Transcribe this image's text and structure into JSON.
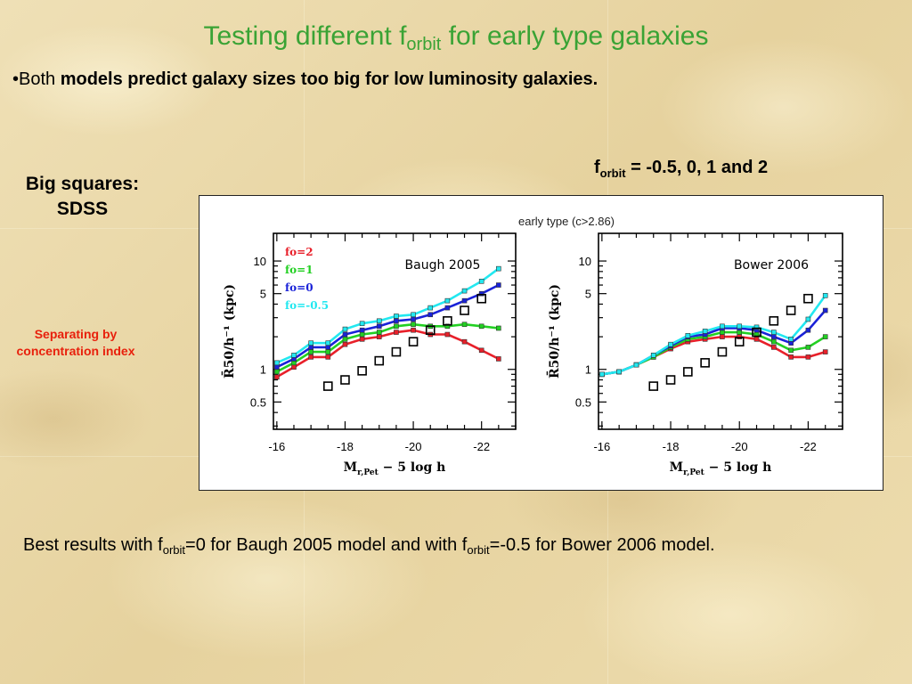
{
  "slide": {
    "title_main": "Testing different f",
    "title_sub": "orbit",
    "title_rest": " for early type galaxies",
    "bullet_marker": "•",
    "bullet_plain": "Both ",
    "bullet_bold": "models predict galaxy sizes too big for low luminosity galaxies.",
    "forbit_label": "f",
    "forbit_sub": "orbit",
    "forbit_values": " = -0.5, 0, 1 and 2",
    "big_squares_line1": "Big squares:",
    "big_squares_line2": "SDSS",
    "separating_line1": "Separating by",
    "separating_line2": "concentration index",
    "bottom_part1": "Best results with f",
    "bottom_sub1": "orbit",
    "bottom_part2": "=0 for Baugh 2005 model and with f",
    "bottom_sub2": "orbit",
    "bottom_part3": "=-0.5 for Bower 2006 model."
  },
  "colors": {
    "title_green": "#3aa335",
    "separating_red": "#e8200c",
    "fo2": "#e8202a",
    "fo1": "#22d022",
    "fo0": "#1a22d8",
    "fom05": "#22e8f0",
    "sdss": "#000000"
  },
  "chart_data": {
    "figure_title": "early type (c>2.86)",
    "panels": [
      {
        "type": "line",
        "title": "Baugh 2005",
        "xlabel_main": "M",
        "xlabel_sub": "r,Pet",
        "xlabel_rest": " − 5 log h",
        "ylabel": "R̄50/h⁻¹ (kpc)",
        "x_ticks": [
          "-16",
          "-18",
          "-20",
          "-22"
        ],
        "x_tick_values": [
          -16,
          -18,
          -20,
          -22
        ],
        "y_ticks": [
          "10",
          "5",
          "1",
          "0.5"
        ],
        "y_tick_values": [
          10,
          5,
          1,
          0.5
        ],
        "xlim": [
          -15.9,
          -23.0
        ],
        "ylim": [
          0.28,
          18
        ],
        "yscale": "log",
        "legend": [
          "fo=2",
          "fo=1",
          "fo=0",
          "fo=-0.5"
        ],
        "legend_placement": "top-left",
        "series": [
          {
            "name": "fo=2",
            "color_key": "fo2",
            "x": [
              -16,
              -16.5,
              -17,
              -17.5,
              -18,
              -18.5,
              -19,
              -19.5,
              -20,
              -20.5,
              -21,
              -21.5,
              -22,
              -22.5
            ],
            "y": [
              0.85,
              1.05,
              1.3,
              1.3,
              1.7,
              1.9,
              2.0,
              2.2,
              2.3,
              2.1,
              2.1,
              1.8,
              1.5,
              1.25
            ]
          },
          {
            "name": "fo=1",
            "color_key": "fo1",
            "x": [
              -16,
              -16.5,
              -17,
              -17.5,
              -18,
              -18.5,
              -19,
              -19.5,
              -20,
              -20.5,
              -21,
              -21.5,
              -22,
              -22.5
            ],
            "y": [
              0.95,
              1.15,
              1.45,
              1.45,
              1.9,
              2.1,
              2.2,
              2.5,
              2.6,
              2.5,
              2.5,
              2.6,
              2.5,
              2.4
            ]
          },
          {
            "name": "fo=0",
            "color_key": "fo0",
            "x": [
              -16,
              -16.5,
              -17,
              -17.5,
              -18,
              -18.5,
              -19,
              -19.5,
              -20,
              -20.5,
              -21,
              -21.5,
              -22,
              -22.5
            ],
            "y": [
              1.05,
              1.25,
              1.6,
              1.6,
              2.1,
              2.3,
              2.5,
              2.8,
              2.9,
              3.2,
              3.7,
              4.3,
              5.0,
              6.0
            ]
          },
          {
            "name": "fo=-0.5",
            "color_key": "fom05",
            "x": [
              -16,
              -16.5,
              -17,
              -17.5,
              -18,
              -18.5,
              -19,
              -19.5,
              -20,
              -20.5,
              -21,
              -21.5,
              -22,
              -22.5
            ],
            "y": [
              1.15,
              1.35,
              1.75,
              1.75,
              2.35,
              2.65,
              2.8,
              3.1,
              3.2,
              3.7,
              4.3,
              5.3,
              6.5,
              8.5
            ]
          }
        ],
        "sdss": {
          "x": [
            -17.5,
            -18,
            -18.5,
            -19,
            -19.5,
            -20,
            -20.5,
            -21,
            -21.5,
            -22
          ],
          "y": [
            0.7,
            0.8,
            0.97,
            1.2,
            1.45,
            1.8,
            2.3,
            2.8,
            3.5,
            4.5
          ]
        }
      },
      {
        "type": "line",
        "title": "Bower 2006",
        "xlabel_main": "M",
        "xlabel_sub": "r,Pet",
        "xlabel_rest": " − 5 log h",
        "ylabel": "R̄50/h⁻¹ (kpc)",
        "x_ticks": [
          "-16",
          "-18",
          "-20",
          "-22"
        ],
        "x_tick_values": [
          -16,
          -18,
          -20,
          -22
        ],
        "y_ticks": [
          "10",
          "5",
          "1",
          "0.5"
        ],
        "y_tick_values": [
          10,
          5,
          1,
          0.5
        ],
        "xlim": [
          -15.9,
          -23.0
        ],
        "ylim": [
          0.28,
          18
        ],
        "yscale": "log",
        "series": [
          {
            "name": "fo=2",
            "color_key": "fo2",
            "x": [
              -16,
              -16.5,
              -17,
              -17.5,
              -18,
              -18.5,
              -19,
              -19.5,
              -20,
              -20.5,
              -21,
              -21.5,
              -22,
              -22.5
            ],
            "y": [
              0.9,
              0.95,
              1.1,
              1.3,
              1.55,
              1.8,
              1.9,
              2.0,
              2.0,
              1.9,
              1.6,
              1.3,
              1.3,
              1.45
            ]
          },
          {
            "name": "fo=1",
            "color_key": "fo1",
            "x": [
              -16,
              -16.5,
              -17,
              -17.5,
              -18,
              -18.5,
              -19,
              -19.5,
              -20,
              -20.5,
              -21,
              -21.5,
              -22,
              -22.5
            ],
            "y": [
              0.9,
              0.95,
              1.1,
              1.3,
              1.6,
              1.9,
              2.0,
              2.2,
              2.2,
              2.1,
              1.8,
              1.5,
              1.6,
              2.0
            ]
          },
          {
            "name": "fo=0",
            "color_key": "fo0",
            "x": [
              -16,
              -16.5,
              -17,
              -17.5,
              -18,
              -18.5,
              -19,
              -19.5,
              -20,
              -20.5,
              -21,
              -21.5,
              -22,
              -22.5
            ],
            "y": [
              0.9,
              0.95,
              1.1,
              1.35,
              1.65,
              2.0,
              2.1,
              2.4,
              2.4,
              2.3,
              2.0,
              1.75,
              2.3,
              3.5
            ]
          },
          {
            "name": "fo=-0.5",
            "color_key": "fom05",
            "x": [
              -16,
              -16.5,
              -17,
              -17.5,
              -18,
              -18.5,
              -19,
              -19.5,
              -20,
              -20.5,
              -21,
              -21.5,
              -22,
              -22.5
            ],
            "y": [
              0.9,
              0.95,
              1.1,
              1.35,
              1.7,
              2.05,
              2.25,
              2.5,
              2.5,
              2.45,
              2.2,
              1.9,
              2.9,
              4.8
            ]
          }
        ],
        "sdss": {
          "x": [
            -17.5,
            -18,
            -18.5,
            -19,
            -19.5,
            -20,
            -20.5,
            -21,
            -21.5,
            -22
          ],
          "y": [
            0.7,
            0.8,
            0.95,
            1.15,
            1.45,
            1.8,
            2.2,
            2.8,
            3.5,
            4.5
          ]
        }
      }
    ]
  }
}
